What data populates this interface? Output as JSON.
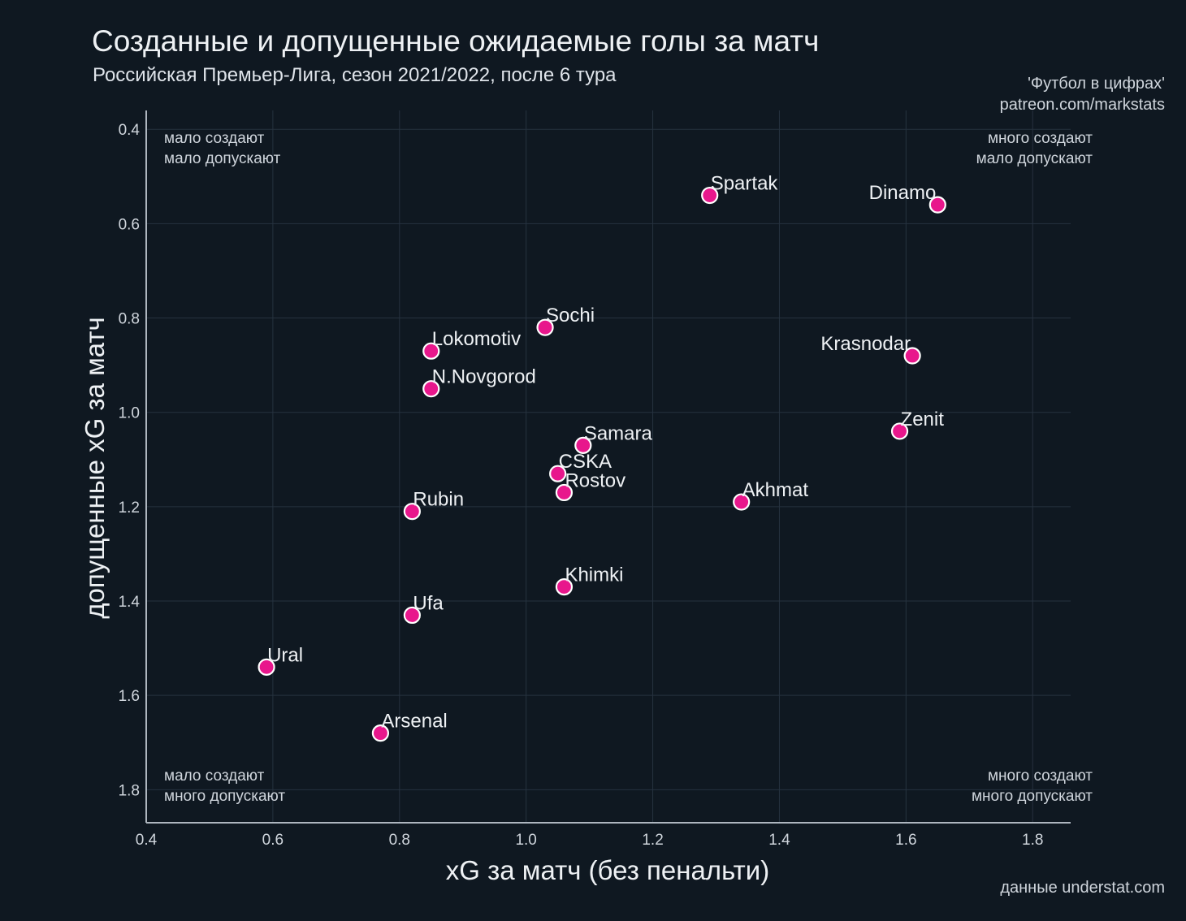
{
  "title": "Созданные и допущенные ожидаемые голы за матч",
  "subtitle": "Российская Премьер-Лига, сезон 2021/2022, после 6 тура",
  "credit": [
    "'Футбол в цифрах'",
    "patreon.com/markstats"
  ],
  "source": "данные understat.com",
  "chart_data": {
    "type": "scatter",
    "xlabel": "xG за матч (без пенальти)",
    "ylabel": "допущенные xG за матч",
    "xlim": [
      0.4,
      1.86
    ],
    "ylim": [
      0.36,
      1.87
    ],
    "y_inverted": true,
    "grid": true,
    "xticks": [
      "0.4",
      "0.6",
      "0.8",
      "1.0",
      "1.2",
      "1.4",
      "1.6",
      "1.8"
    ],
    "yticks": [
      "0.4",
      "0.6",
      "0.8",
      "1.0",
      "1.2",
      "1.4",
      "1.6",
      "1.8"
    ],
    "marker_color": "#e8178c",
    "marker_edge": "#ffffff",
    "quadrant_labels": {
      "top_left": [
        "мало создают",
        "мало допускают"
      ],
      "top_right": [
        "много создают",
        "мало допускают"
      ],
      "bottom_left": [
        "мало создают",
        "много допускают"
      ],
      "bottom_right": [
        "много создают",
        "много допускают"
      ]
    },
    "points": [
      {
        "label": "Spartak",
        "x": 1.29,
        "y": 0.54
      },
      {
        "label": "Dinamo",
        "x": 1.65,
        "y": 0.56
      },
      {
        "label": "Sochi",
        "x": 1.03,
        "y": 0.82
      },
      {
        "label": "Lokomotiv",
        "x": 0.85,
        "y": 0.87
      },
      {
        "label": "Krasnodar",
        "x": 1.61,
        "y": 0.88
      },
      {
        "label": "N.Novgorod",
        "x": 0.85,
        "y": 0.95
      },
      {
        "label": "Zenit",
        "x": 1.59,
        "y": 1.04
      },
      {
        "label": "Samara",
        "x": 1.09,
        "y": 1.07
      },
      {
        "label": "CSKA",
        "x": 1.05,
        "y": 1.13
      },
      {
        "label": "Rostov",
        "x": 1.06,
        "y": 1.17
      },
      {
        "label": "Akhmat",
        "x": 1.34,
        "y": 1.19
      },
      {
        "label": "Rubin",
        "x": 0.82,
        "y": 1.21
      },
      {
        "label": "Khimki",
        "x": 1.06,
        "y": 1.37
      },
      {
        "label": "Ufa",
        "x": 0.82,
        "y": 1.43
      },
      {
        "label": "Ural",
        "x": 0.59,
        "y": 1.54
      },
      {
        "label": "Arsenal",
        "x": 0.77,
        "y": 1.68
      }
    ]
  }
}
